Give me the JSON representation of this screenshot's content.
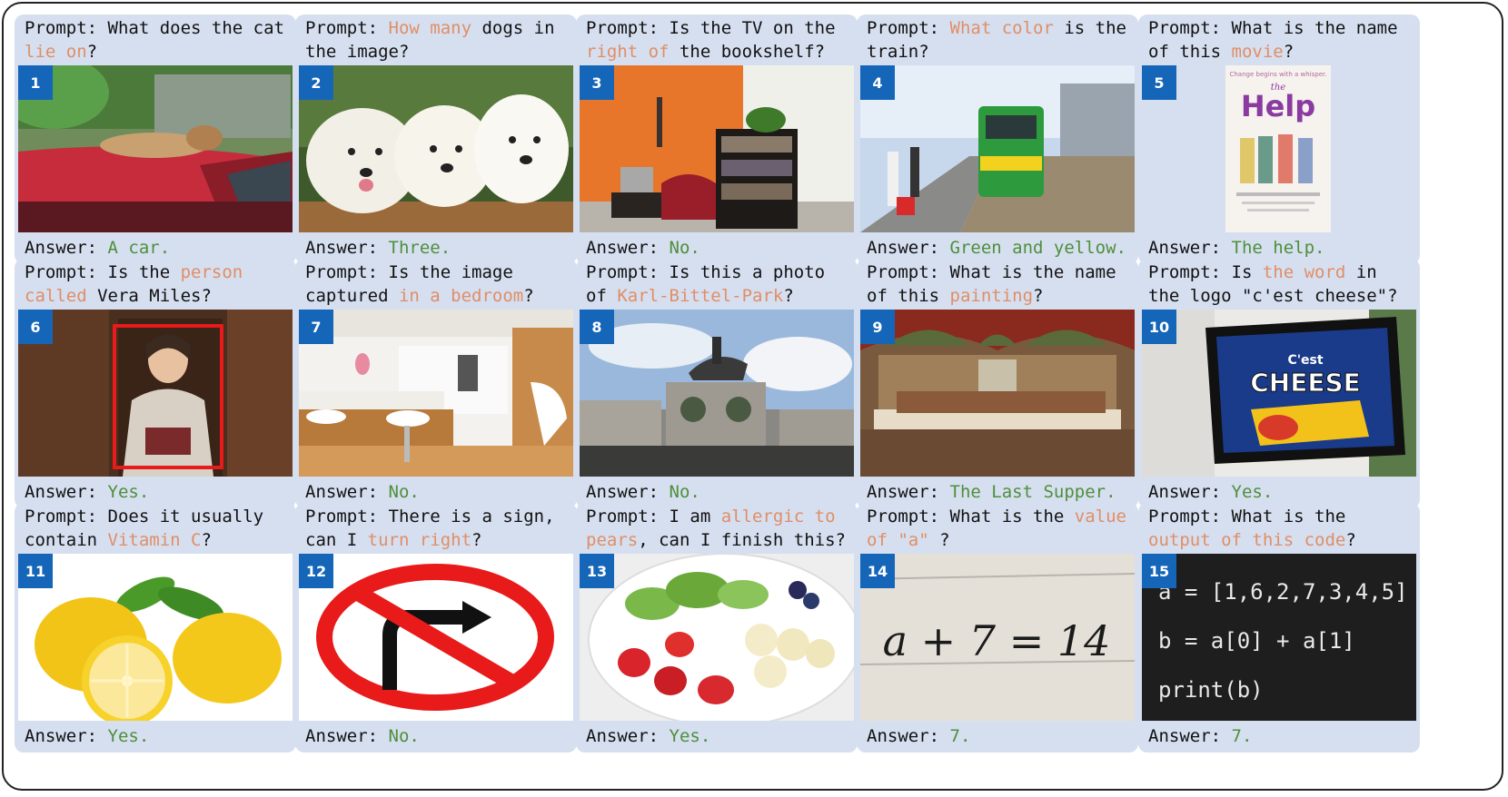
{
  "cards": [
    {
      "number": "1",
      "prompt_parts": [
        {
          "t": "Prompt: What does the cat ",
          "hl": false
        },
        {
          "t": "lie on",
          "hl": true
        },
        {
          "t": "?",
          "hl": false
        }
      ],
      "answer_label": "Answer:",
      "answer": "A car.",
      "image_icon": "cat-on-car-photo"
    },
    {
      "number": "2",
      "prompt_parts": [
        {
          "t": "Prompt: ",
          "hl": false
        },
        {
          "t": "How many",
          "hl": true
        },
        {
          "t": " dogs in the image?",
          "hl": false
        }
      ],
      "answer_label": "Answer:",
      "answer": "Three.",
      "image_icon": "puppies-photo"
    },
    {
      "number": "3",
      "prompt_parts": [
        {
          "t": "Prompt: Is the TV on the ",
          "hl": false
        },
        {
          "t": "right of",
          "hl": true
        },
        {
          "t": " the bookshelf?",
          "hl": false
        }
      ],
      "answer_label": "Answer:",
      "answer": "No.",
      "image_icon": "living-room-photo"
    },
    {
      "number": "4",
      "prompt_parts": [
        {
          "t": "Prompt: ",
          "hl": false
        },
        {
          "t": "What color",
          "hl": true
        },
        {
          "t": " is the train?",
          "hl": false
        }
      ],
      "answer_label": "Answer:",
      "answer": "Green and yellow.",
      "image_icon": "train-station-photo"
    },
    {
      "number": "5",
      "prompt_parts": [
        {
          "t": "Prompt: What is the name of this ",
          "hl": false
        },
        {
          "t": "movie",
          "hl": true
        },
        {
          "t": "?",
          "hl": false
        }
      ],
      "answer_label": "Answer:",
      "answer": "The help.",
      "image_icon": "movie-poster-photo",
      "poster_tagline": "Change begins with a whisper.",
      "poster_title_small": "the",
      "poster_title": "Help"
    },
    {
      "number": "6",
      "prompt_parts": [
        {
          "t": "Prompt: Is the ",
          "hl": false
        },
        {
          "t": "person called",
          "hl": true
        },
        {
          "t": " Vera Miles?",
          "hl": false
        }
      ],
      "answer_label": "Answer:",
      "answer": "Yes.",
      "image_icon": "woman-portrait-photo"
    },
    {
      "number": "7",
      "prompt_parts": [
        {
          "t": "Prompt: Is the image captured ",
          "hl": false
        },
        {
          "t": "in a bedroom",
          "hl": true
        },
        {
          "t": "?",
          "hl": false
        }
      ],
      "answer_label": "Answer:",
      "answer": "No.",
      "image_icon": "kitchen-photo"
    },
    {
      "number": "8",
      "prompt_parts": [
        {
          "t": "Prompt: Is this a photo of ",
          "hl": false
        },
        {
          "t": "Karl-Bittel-Park",
          "hl": true
        },
        {
          "t": "?",
          "hl": false
        }
      ],
      "answer_label": "Answer:",
      "answer": "No.",
      "image_icon": "equestrian-statue-photo"
    },
    {
      "number": "9",
      "prompt_parts": [
        {
          "t": "Prompt: What is the name of this ",
          "hl": false
        },
        {
          "t": "painting",
          "hl": true
        },
        {
          "t": "?",
          "hl": false
        }
      ],
      "answer_label": "Answer:",
      "answer": "The Last Supper.",
      "image_icon": "last-supper-painting"
    },
    {
      "number": "10",
      "prompt_parts": [
        {
          "t": "Prompt: Is ",
          "hl": false
        },
        {
          "t": "the word",
          "hl": true
        },
        {
          "t": " in the logo \"c'est cheese\"?",
          "hl": false
        }
      ],
      "answer_label": "Answer:",
      "answer": "Yes.",
      "image_icon": "cheese-sign-photo",
      "sign_top": "C'est",
      "sign_main": "CHEESE"
    },
    {
      "number": "11",
      "prompt_parts": [
        {
          "t": "Prompt: Does it usually contain ",
          "hl": false
        },
        {
          "t": "Vitamin C",
          "hl": true
        },
        {
          "t": "?",
          "hl": false
        }
      ],
      "answer_label": "Answer:",
      "answer": "Yes.",
      "image_icon": "lemons-photo"
    },
    {
      "number": "12",
      "prompt_parts": [
        {
          "t": "Prompt: There is a sign, can I ",
          "hl": false
        },
        {
          "t": "turn right",
          "hl": true
        },
        {
          "t": "?",
          "hl": false
        }
      ],
      "answer_label": "Answer:",
      "answer": "No.",
      "image_icon": "no-right-turn-sign"
    },
    {
      "number": "13",
      "prompt_parts": [
        {
          "t": "Prompt: I am ",
          "hl": false
        },
        {
          "t": "allergic to pears",
          "hl": true
        },
        {
          "t": ", can I finish this?",
          "hl": false
        }
      ],
      "answer_label": "Answer:",
      "answer": "Yes.",
      "image_icon": "fruit-plate-photo"
    },
    {
      "number": "14",
      "prompt_parts": [
        {
          "t": "Prompt: What is the ",
          "hl": false
        },
        {
          "t": "value of \"a\"",
          "hl": true
        },
        {
          "t": " ?",
          "hl": false
        }
      ],
      "answer_label": "Answer:",
      "answer": "7.",
      "image_icon": "handwritten-equation-photo",
      "equation": "a + 7 = 14"
    },
    {
      "number": "15",
      "prompt_parts": [
        {
          "t": "Prompt: What is the ",
          "hl": false
        },
        {
          "t": "output of this code",
          "hl": true
        },
        {
          "t": "?",
          "hl": false
        }
      ],
      "answer_label": "Answer:",
      "answer": "7.",
      "image_icon": "code-screenshot",
      "code_lines": [
        "a = [1,6,2,7,3,4,5]",
        "b = a[0] + a[1]",
        "print(b)"
      ]
    }
  ],
  "colors": {
    "card_bg": "#d6dff0",
    "highlight": "#e08e66",
    "answer": "#4d8f3a",
    "badge": "#1565b8"
  }
}
